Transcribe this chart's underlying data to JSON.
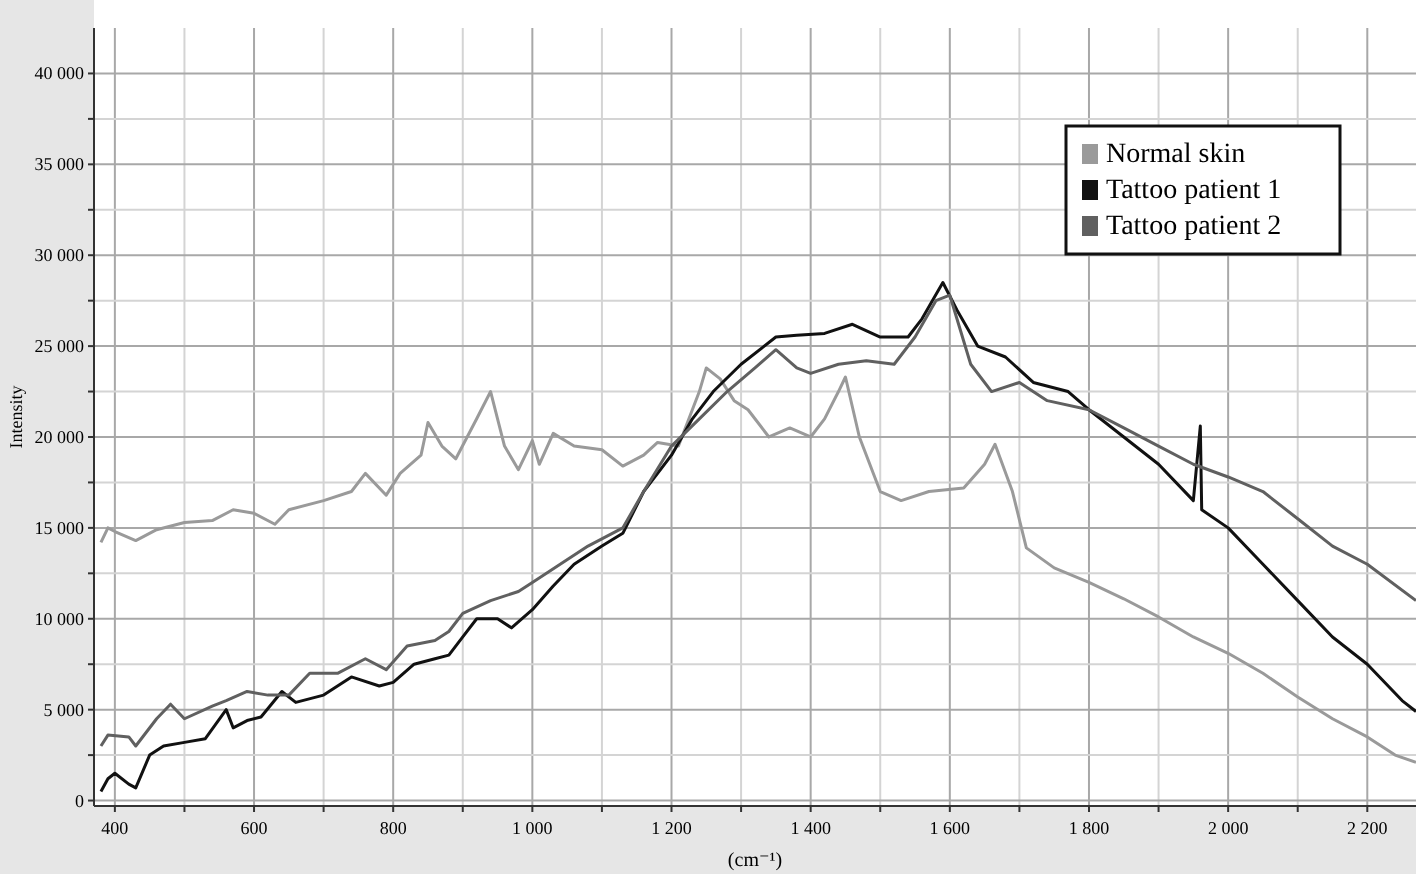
{
  "chart_data": {
    "type": "line",
    "xlabel": "(cm⁻¹)",
    "ylabel": "Intensity",
    "xlim": [
      370,
      2270
    ],
    "ylim": [
      -300,
      42500
    ],
    "xticks": [
      {
        "value": 400,
        "label": "400"
      },
      {
        "value": 500,
        "label": null
      },
      {
        "value": 600,
        "label": "600"
      },
      {
        "value": 700,
        "label": null
      },
      {
        "value": 800,
        "label": "800"
      },
      {
        "value": 900,
        "label": null
      },
      {
        "value": 1000,
        "label": "1 000"
      },
      {
        "value": 1100,
        "label": null
      },
      {
        "value": 1200,
        "label": "1 200"
      },
      {
        "value": 1300,
        "label": null
      },
      {
        "value": 1400,
        "label": "1 400"
      },
      {
        "value": 1500,
        "label": null
      },
      {
        "value": 1600,
        "label": "1 600"
      },
      {
        "value": 1700,
        "label": null
      },
      {
        "value": 1800,
        "label": "1 800"
      },
      {
        "value": 1900,
        "label": null
      },
      {
        "value": 2000,
        "label": "2 000"
      },
      {
        "value": 2100,
        "label": null
      },
      {
        "value": 2200,
        "label": "2 200"
      }
    ],
    "yticks": [
      0,
      {
        "value": 2500,
        "label": null
      },
      {
        "value": 5000,
        "label": "5 000"
      },
      {
        "value": 7500,
        "label": null
      },
      {
        "value": 10000,
        "label": "10 000"
      },
      {
        "value": 12500,
        "label": null
      },
      {
        "value": 15000,
        "label": "15 000"
      },
      {
        "value": 17500,
        "label": null
      },
      {
        "value": 20000,
        "label": "20 000"
      },
      {
        "value": 22500,
        "label": null
      },
      {
        "value": 25000,
        "label": "25 000"
      },
      {
        "value": 27500,
        "label": null
      },
      {
        "value": 30000,
        "label": "30 000"
      },
      {
        "value": 32500,
        "label": null
      },
      {
        "value": 35000,
        "label": "35 000"
      },
      {
        "value": 37500,
        "label": null
      },
      {
        "value": 40000,
        "label": "40 000"
      }
    ],
    "grid": true,
    "legend": "top right",
    "marker": "none",
    "line_style": "solid",
    "series": [
      {
        "name": "Normal skin",
        "color": "#9a9a9a",
        "x": [
          380,
          390,
          400,
          430,
          460,
          500,
          540,
          570,
          600,
          630,
          650,
          700,
          740,
          760,
          790,
          810,
          840,
          850,
          870,
          890,
          920,
          940,
          960,
          980,
          1000,
          1010,
          1030,
          1060,
          1100,
          1130,
          1160,
          1180,
          1210,
          1240,
          1250,
          1270,
          1290,
          1310,
          1340,
          1370,
          1400,
          1420,
          1440,
          1450,
          1470,
          1500,
          1530,
          1570,
          1620,
          1650,
          1665,
          1690,
          1710,
          1750,
          1800,
          1850,
          1900,
          1950,
          2000,
          2050,
          2100,
          2150,
          2200,
          2240,
          2270
        ],
        "values": [
          14200,
          15000,
          14800,
          14300,
          14900,
          15300,
          15400,
          16000,
          15800,
          15200,
          16000,
          16500,
          17000,
          18000,
          16800,
          18000,
          19000,
          20800,
          19500,
          18800,
          21000,
          22500,
          19500,
          18200,
          19800,
          18500,
          20200,
          19500,
          19300,
          18400,
          19000,
          19700,
          19500,
          22500,
          23800,
          23200,
          22000,
          21500,
          20000,
          20500,
          20000,
          21000,
          22500,
          23300,
          20000,
          17000,
          16500,
          17000,
          17200,
          18500,
          19600,
          17000,
          13900,
          12800,
          12000,
          11100,
          10100,
          9000,
          8100,
          7000,
          5700,
          4500,
          3500,
          2500,
          2100
        ]
      },
      {
        "name": "Tattoo patient 1",
        "color": "#111111",
        "x": [
          380,
          390,
          400,
          420,
          430,
          450,
          470,
          500,
          530,
          560,
          570,
          590,
          610,
          640,
          660,
          700,
          740,
          780,
          800,
          830,
          860,
          880,
          900,
          920,
          950,
          970,
          1000,
          1030,
          1060,
          1100,
          1130,
          1160,
          1200,
          1230,
          1260,
          1300,
          1350,
          1380,
          1420,
          1460,
          1500,
          1540,
          1560,
          1590,
          1610,
          1640,
          1680,
          1720,
          1770,
          1800,
          1850,
          1900,
          1950,
          1960,
          1962,
          2000,
          2050,
          2100,
          2150,
          2200,
          2250,
          2270
        ],
        "values": [
          500,
          1200,
          1500,
          900,
          700,
          2500,
          3000,
          3200,
          3400,
          5000,
          4000,
          4400,
          4600,
          6000,
          5400,
          5800,
          6800,
          6300,
          6500,
          7500,
          7800,
          8000,
          9000,
          10000,
          10000,
          9500,
          10500,
          11800,
          13000,
          14000,
          14700,
          17000,
          19000,
          21000,
          22500,
          24000,
          25500,
          25600,
          25700,
          26200,
          25500,
          25500,
          26500,
          28500,
          27000,
          25000,
          24400,
          23000,
          22500,
          21500,
          20000,
          18500,
          16500,
          20600,
          16000,
          15000,
          13000,
          11000,
          9000,
          7500,
          5500,
          4900
        ]
      },
      {
        "name": "Tattoo patient 2",
        "color": "#606060",
        "x": [
          380,
          390,
          420,
          430,
          460,
          480,
          500,
          540,
          560,
          590,
          620,
          650,
          680,
          720,
          760,
          790,
          820,
          860,
          880,
          900,
          940,
          980,
          1000,
          1040,
          1080,
          1130,
          1160,
          1200,
          1240,
          1280,
          1320,
          1350,
          1380,
          1400,
          1440,
          1480,
          1520,
          1550,
          1580,
          1600,
          1630,
          1660,
          1700,
          1740,
          1800,
          1850,
          1900,
          1950,
          2000,
          2050,
          2100,
          2150,
          2200,
          2270
        ],
        "values": [
          3000,
          3600,
          3500,
          3000,
          4500,
          5300,
          4500,
          5200,
          5500,
          6000,
          5800,
          5800,
          7000,
          7000,
          7800,
          7200,
          8500,
          8800,
          9300,
          10300,
          11000,
          11500,
          12000,
          13000,
          14000,
          15000,
          17000,
          19500,
          21000,
          22500,
          23800,
          24800,
          23800,
          23500,
          24000,
          24200,
          24000,
          25500,
          27500,
          27800,
          24000,
          22500,
          23000,
          22000,
          21500,
          20500,
          19500,
          18500,
          17800,
          17000,
          15500,
          14000,
          13000,
          11000
        ]
      }
    ]
  }
}
